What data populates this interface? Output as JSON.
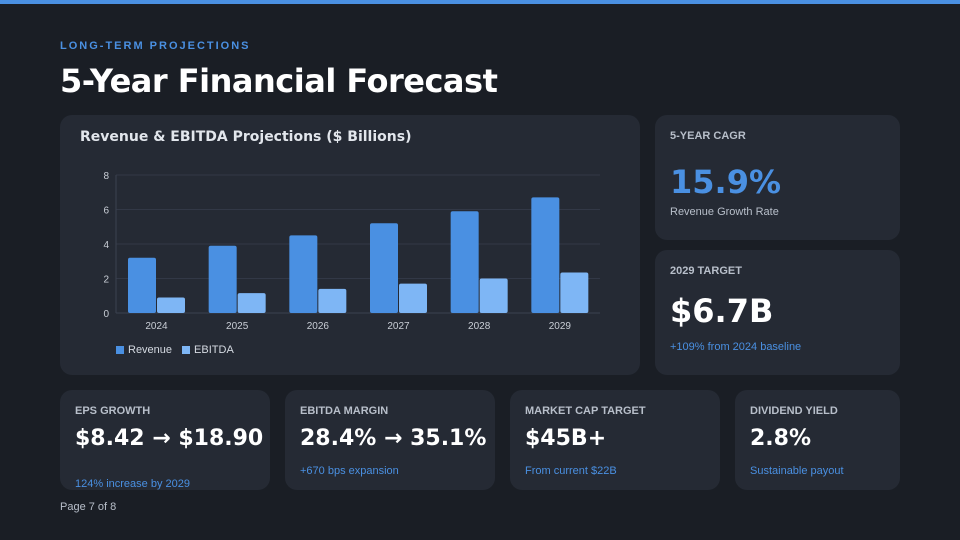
{
  "eyebrow": "LONG-TERM PROJECTIONS",
  "title": "5-Year Financial Forecast",
  "colors": {
    "accent": "#4a90e2",
    "revenue": "#4a90e2",
    "ebitda": "#7eb6f5",
    "background": "#1a1e25",
    "card": "#252a34"
  },
  "chart_data": {
    "type": "bar",
    "title": "Revenue & EBITDA Projections ($ Billions)",
    "categories": [
      "2024",
      "2025",
      "2026",
      "2027",
      "2028",
      "2029"
    ],
    "series": [
      {
        "name": "Revenue",
        "values": [
          3.2,
          3.9,
          4.5,
          5.2,
          5.9,
          6.7
        ]
      },
      {
        "name": "EBITDA",
        "values": [
          0.9,
          1.15,
          1.4,
          1.7,
          2.0,
          2.35
        ]
      }
    ],
    "yticks": [
      0,
      2,
      4,
      6,
      8
    ],
    "ylim": [
      0,
      8
    ],
    "xlabel": "",
    "ylabel": "",
    "legend": "bottom-left",
    "grid": true
  },
  "stats": {
    "cagr": {
      "label": "5-YEAR CAGR",
      "value": "15.9%",
      "sub": "Revenue Growth Rate"
    },
    "target": {
      "label": "2029 TARGET",
      "value": "$6.7B",
      "sub": "+109% from 2024 baseline"
    }
  },
  "metrics": [
    {
      "label": "EPS GROWTH",
      "value": "$8.42 → $18.90",
      "sub": "124% increase by 2029"
    },
    {
      "label": "EBITDA MARGIN",
      "value": "28.4% → 35.1%",
      "sub": "+670 bps expansion"
    },
    {
      "label": "MARKET CAP TARGET",
      "value": "$45B+",
      "sub": "From current $22B"
    },
    {
      "label": "DIVIDEND YIELD",
      "value": "2.8%",
      "sub": "Sustainable payout"
    }
  ],
  "footer": "Page 7 of 8"
}
